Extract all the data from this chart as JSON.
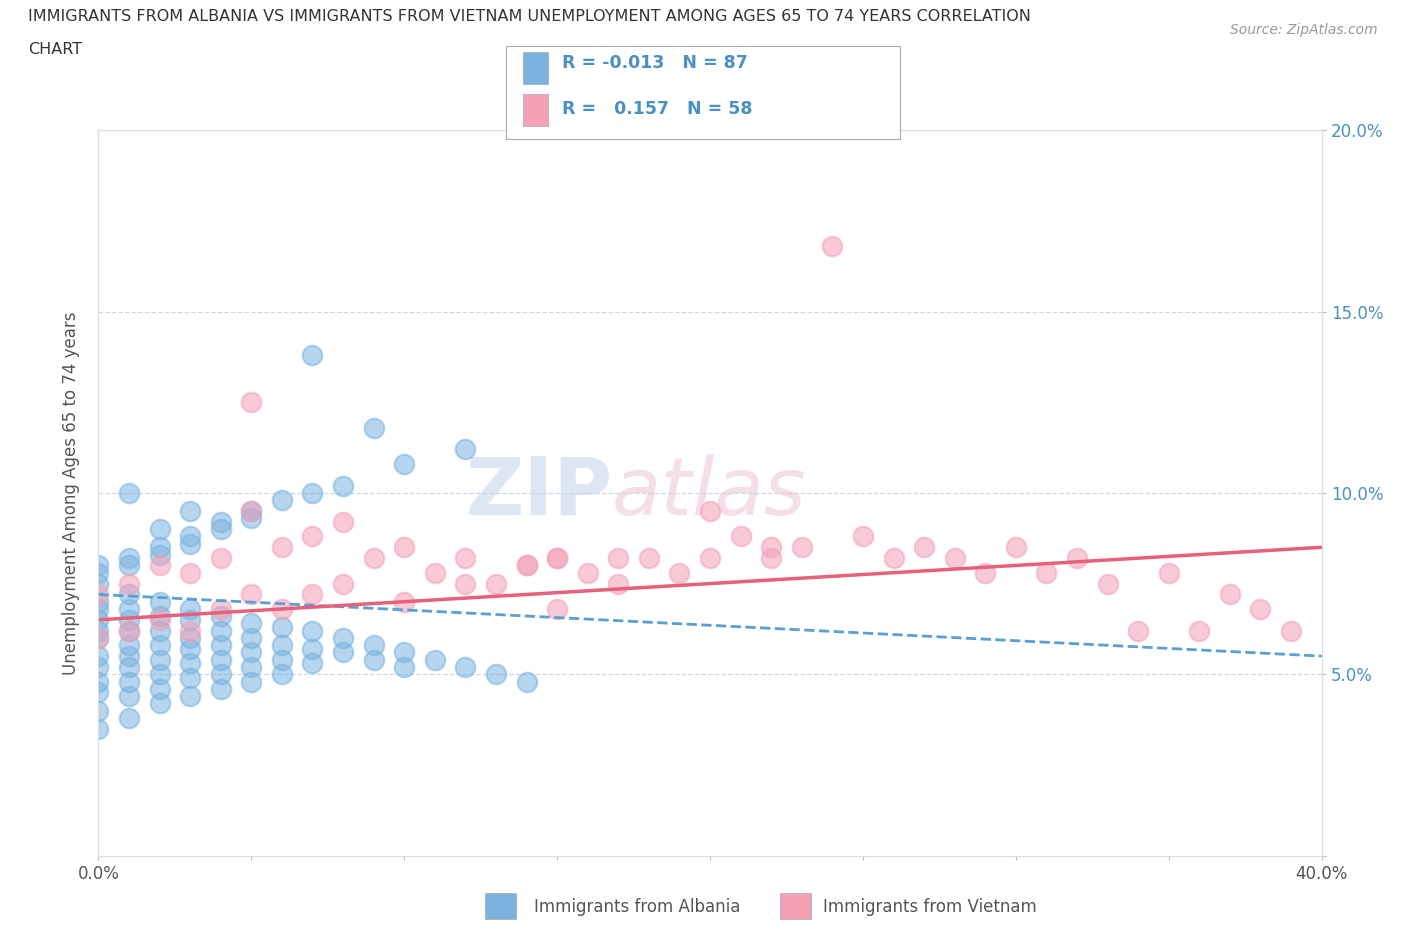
{
  "title_line1": "IMMIGRANTS FROM ALBANIA VS IMMIGRANTS FROM VIETNAM UNEMPLOYMENT AMONG AGES 65 TO 74 YEARS CORRELATION",
  "title_line2": "CHART",
  "source_text": "Source: ZipAtlas.com",
  "ylabel": "Unemployment Among Ages 65 to 74 years",
  "xlim": [
    0.0,
    0.4
  ],
  "ylim": [
    0.0,
    0.2
  ],
  "xticks": [
    0.0,
    0.05,
    0.1,
    0.15,
    0.2,
    0.25,
    0.3,
    0.35,
    0.4
  ],
  "yticks": [
    0.0,
    0.05,
    0.1,
    0.15,
    0.2
  ],
  "albania_color": "#7ab3e0",
  "vietnam_color": "#f4a0b5",
  "albania_R": -0.013,
  "albania_N": 87,
  "vietnam_R": 0.157,
  "vietnam_N": 58,
  "albania_line_color": "#5a9fd4",
  "vietnam_line_color": "#e8607a",
  "legend_text_color": "#4a90c4",
  "watermark_zip": "ZIP",
  "watermark_atlas": "atlas",
  "albania_x": [
    0.0,
    0.0,
    0.0,
    0.0,
    0.0,
    0.0,
    0.0,
    0.0,
    0.0,
    0.0,
    0.0,
    0.0,
    0.01,
    0.01,
    0.01,
    0.01,
    0.01,
    0.01,
    0.01,
    0.01,
    0.01,
    0.01,
    0.02,
    0.02,
    0.02,
    0.02,
    0.02,
    0.02,
    0.02,
    0.02,
    0.03,
    0.03,
    0.03,
    0.03,
    0.03,
    0.03,
    0.03,
    0.04,
    0.04,
    0.04,
    0.04,
    0.04,
    0.04,
    0.05,
    0.05,
    0.05,
    0.05,
    0.05,
    0.06,
    0.06,
    0.06,
    0.06,
    0.07,
    0.07,
    0.07,
    0.08,
    0.08,
    0.09,
    0.09,
    0.1,
    0.1,
    0.11,
    0.12,
    0.13,
    0.14,
    0.02,
    0.03,
    0.01,
    0.0,
    0.0,
    0.01,
    0.01,
    0.02,
    0.02,
    0.03,
    0.03,
    0.04,
    0.04,
    0.05,
    0.05,
    0.06,
    0.07,
    0.08,
    0.1,
    0.12,
    0.07,
    0.09
  ],
  "albania_y": [
    0.075,
    0.07,
    0.068,
    0.065,
    0.062,
    0.06,
    0.055,
    0.052,
    0.048,
    0.045,
    0.04,
    0.035,
    0.072,
    0.068,
    0.065,
    0.062,
    0.058,
    0.055,
    0.052,
    0.048,
    0.044,
    0.038,
    0.07,
    0.066,
    0.062,
    0.058,
    0.054,
    0.05,
    0.046,
    0.042,
    0.068,
    0.065,
    0.06,
    0.057,
    0.053,
    0.049,
    0.044,
    0.066,
    0.062,
    0.058,
    0.054,
    0.05,
    0.046,
    0.064,
    0.06,
    0.056,
    0.052,
    0.048,
    0.063,
    0.058,
    0.054,
    0.05,
    0.062,
    0.057,
    0.053,
    0.06,
    0.056,
    0.058,
    0.054,
    0.056,
    0.052,
    0.054,
    0.052,
    0.05,
    0.048,
    0.09,
    0.095,
    0.1,
    0.08,
    0.078,
    0.082,
    0.08,
    0.085,
    0.083,
    0.088,
    0.086,
    0.092,
    0.09,
    0.095,
    0.093,
    0.098,
    0.1,
    0.102,
    0.108,
    0.112,
    0.138,
    0.118
  ],
  "vietnam_x": [
    0.0,
    0.0,
    0.01,
    0.01,
    0.02,
    0.02,
    0.03,
    0.03,
    0.04,
    0.04,
    0.05,
    0.05,
    0.05,
    0.06,
    0.06,
    0.07,
    0.07,
    0.08,
    0.08,
    0.09,
    0.1,
    0.1,
    0.11,
    0.12,
    0.13,
    0.14,
    0.15,
    0.15,
    0.16,
    0.17,
    0.18,
    0.19,
    0.2,
    0.21,
    0.22,
    0.23,
    0.24,
    0.25,
    0.26,
    0.27,
    0.28,
    0.29,
    0.3,
    0.31,
    0.32,
    0.33,
    0.34,
    0.35,
    0.36,
    0.37,
    0.38,
    0.39,
    0.12,
    0.14,
    0.15,
    0.17,
    0.2,
    0.22
  ],
  "vietnam_y": [
    0.072,
    0.06,
    0.075,
    0.062,
    0.08,
    0.065,
    0.078,
    0.062,
    0.082,
    0.068,
    0.125,
    0.095,
    0.072,
    0.085,
    0.068,
    0.088,
    0.072,
    0.092,
    0.075,
    0.082,
    0.085,
    0.07,
    0.078,
    0.082,
    0.075,
    0.08,
    0.082,
    0.068,
    0.078,
    0.075,
    0.082,
    0.078,
    0.095,
    0.088,
    0.082,
    0.085,
    0.168,
    0.088,
    0.082,
    0.085,
    0.082,
    0.078,
    0.085,
    0.078,
    0.082,
    0.075,
    0.062,
    0.078,
    0.062,
    0.072,
    0.068,
    0.062,
    0.075,
    0.08,
    0.082,
    0.082,
    0.082,
    0.085
  ]
}
